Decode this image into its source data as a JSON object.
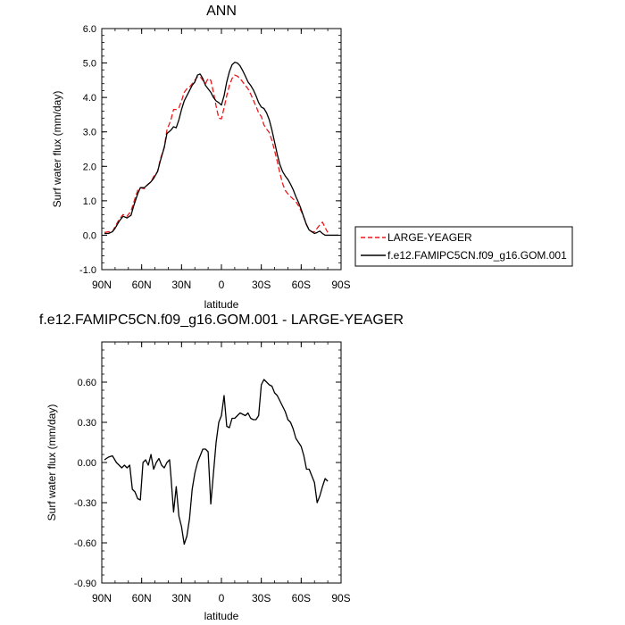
{
  "chart_data": [
    {
      "type": "line",
      "title": "ANN",
      "xlabel": "latitude",
      "ylabel": "Surf water flux (mm/day)",
      "xlim": [
        -90,
        90
      ],
      "ylim": [
        -1.0,
        6.0
      ],
      "x_ticks": [
        -90,
        -60,
        -30,
        0,
        30,
        60,
        90
      ],
      "x_tick_labels": [
        "90N",
        "60N",
        "30N",
        "0",
        "30S",
        "60S",
        "90S"
      ],
      "y_ticks": [
        -1,
        0,
        1,
        2,
        3,
        4,
        5,
        6
      ],
      "y_tick_labels": [
        "-1.0",
        "0.0",
        "1.0",
        "2.0",
        "3.0",
        "4.0",
        "5.0",
        "6.0"
      ],
      "grid": false,
      "legend_placement": "right",
      "series": [
        {
          "name": "LARGE-YEAGER",
          "color": "#e8191b",
          "dash": "dashed",
          "x": [
            -88,
            -85,
            -82,
            -80,
            -77,
            -74,
            -71,
            -68,
            -66,
            -63,
            -61,
            -58,
            -56,
            -53,
            -51,
            -48,
            -46,
            -43,
            -41,
            -38,
            -36,
            -34,
            -32,
            -30,
            -28,
            -26,
            -24,
            -22,
            -20,
            -18,
            -16,
            -14,
            -12,
            -10,
            -8,
            -6,
            -4,
            -2,
            0,
            2,
            4,
            6,
            8,
            10,
            12,
            14,
            16,
            18,
            20,
            22,
            24,
            26,
            28,
            30,
            32,
            34,
            36,
            38,
            40,
            42,
            44,
            46,
            48,
            50,
            52,
            54,
            56,
            58,
            60,
            62,
            64,
            66,
            68,
            70,
            72,
            74,
            76,
            78,
            80
          ],
          "y": [
            0.08,
            0.1,
            0.1,
            0.25,
            0.45,
            0.6,
            0.55,
            0.7,
            0.95,
            1.3,
            1.38,
            1.35,
            1.45,
            1.55,
            1.7,
            1.85,
            2.2,
            2.55,
            3.05,
            3.35,
            3.65,
            3.65,
            3.7,
            3.9,
            4.15,
            4.25,
            4.3,
            4.4,
            4.5,
            4.6,
            4.6,
            4.5,
            4.4,
            4.55,
            4.5,
            4.15,
            3.75,
            3.4,
            3.38,
            3.7,
            4.05,
            4.35,
            4.55,
            4.65,
            4.62,
            4.55,
            4.45,
            4.35,
            4.25,
            4.1,
            3.92,
            3.75,
            3.55,
            3.45,
            3.2,
            3.08,
            2.98,
            2.75,
            2.45,
            2.15,
            1.8,
            1.5,
            1.3,
            1.2,
            1.12,
            1.05,
            0.98,
            0.85,
            0.7,
            0.52,
            0.32,
            0.15,
            0.1,
            0.1,
            0.2,
            0.3,
            0.38,
            0.22,
            0.08
          ]
        },
        {
          "name": "f.e12.FAMIPC5CN.f09_g16.GOM.001",
          "color": "#000000",
          "dash": "solid",
          "x": [
            -88,
            -85,
            -82,
            -80,
            -77,
            -74,
            -71,
            -68,
            -66,
            -63,
            -61,
            -58,
            -56,
            -53,
            -51,
            -48,
            -46,
            -43,
            -41,
            -38,
            -36,
            -34,
            -32,
            -30,
            -28,
            -26,
            -24,
            -22,
            -20,
            -18,
            -16,
            -14,
            -12,
            -10,
            -8,
            -6,
            -4,
            -2,
            0,
            2,
            4,
            6,
            8,
            10,
            12,
            14,
            16,
            18,
            20,
            22,
            24,
            26,
            28,
            30,
            32,
            34,
            36,
            38,
            40,
            42,
            44,
            46,
            48,
            50,
            52,
            54,
            56,
            58,
            60,
            62,
            64,
            66,
            68,
            70,
            72,
            74,
            76,
            78,
            80,
            82,
            85,
            88
          ],
          "y": [
            0.05,
            0.05,
            0.1,
            0.2,
            0.4,
            0.55,
            0.5,
            0.58,
            0.85,
            1.2,
            1.38,
            1.38,
            1.45,
            1.55,
            1.65,
            1.85,
            2.15,
            2.55,
            2.95,
            3.05,
            3.15,
            3.12,
            3.35,
            3.65,
            3.9,
            4.05,
            4.2,
            4.35,
            4.45,
            4.65,
            4.68,
            4.55,
            4.35,
            4.25,
            4.15,
            4.0,
            3.9,
            3.85,
            3.78,
            4.05,
            4.45,
            4.75,
            4.95,
            5.02,
            5.0,
            4.92,
            4.78,
            4.62,
            4.45,
            4.35,
            4.22,
            4.05,
            3.85,
            3.72,
            3.68,
            3.55,
            3.35,
            3.05,
            2.7,
            2.35,
            2.05,
            1.85,
            1.72,
            1.62,
            1.48,
            1.32,
            1.12,
            0.95,
            0.75,
            0.52,
            0.3,
            0.15,
            0.1,
            0.05,
            0.08,
            0.12,
            0.05,
            0.0,
            0.0,
            0.0,
            0.0,
            0.0
          ]
        }
      ]
    },
    {
      "type": "line",
      "title": "f.e12.FAMIPC5CN.f09_g16.GOM.001 - LARGE-YEAGER",
      "xlabel": "latitude",
      "ylabel": "Surf water flux (mm/day)",
      "xlim": [
        -90,
        90
      ],
      "ylim": [
        -0.9,
        0.9
      ],
      "x_ticks": [
        -90,
        -60,
        -30,
        0,
        30,
        60,
        90
      ],
      "x_tick_labels": [
        "90N",
        "60N",
        "30N",
        "0",
        "30S",
        "60S",
        "90S"
      ],
      "y_ticks": [
        -0.9,
        -0.6,
        -0.3,
        0.0,
        0.3,
        0.6
      ],
      "y_tick_labels": [
        "-0.90",
        "-0.60",
        "-0.30",
        "0.00",
        "0.30",
        "0.60"
      ],
      "grid": false,
      "series": [
        {
          "color": "#000000",
          "x": [
            -88,
            -85,
            -82,
            -79,
            -77,
            -75,
            -73,
            -71,
            -69,
            -67,
            -65,
            -63,
            -61,
            -59,
            -57,
            -55,
            -53,
            -51,
            -49,
            -47,
            -45,
            -43,
            -41,
            -39,
            -38,
            -36,
            -34,
            -32,
            -30,
            -28,
            -26,
            -24,
            -22,
            -20,
            -18,
            -16,
            -14,
            -12,
            -10,
            -8,
            -6,
            -4,
            -2,
            0,
            2,
            4,
            6,
            8,
            10,
            12,
            14,
            16,
            18,
            20,
            22,
            24,
            26,
            28,
            30,
            32,
            34,
            36,
            38,
            40,
            42,
            44,
            46,
            48,
            50,
            52,
            54,
            56,
            58,
            60,
            62,
            64,
            66,
            68,
            70,
            72,
            74,
            76,
            78,
            80
          ],
          "y": [
            0.02,
            0.04,
            0.05,
            0.0,
            -0.02,
            -0.04,
            -0.02,
            -0.04,
            -0.02,
            -0.2,
            -0.22,
            -0.27,
            -0.28,
            0.0,
            0.02,
            -0.02,
            0.06,
            -0.05,
            0.0,
            0.03,
            -0.02,
            -0.04,
            0.0,
            0.02,
            -0.1,
            -0.37,
            -0.18,
            -0.4,
            -0.48,
            -0.61,
            -0.55,
            -0.42,
            -0.2,
            -0.08,
            0.0,
            0.05,
            0.1,
            0.1,
            0.08,
            -0.31,
            -0.08,
            0.15,
            0.3,
            0.35,
            0.5,
            0.27,
            0.26,
            0.33,
            0.33,
            0.35,
            0.37,
            0.36,
            0.35,
            0.37,
            0.33,
            0.32,
            0.32,
            0.35,
            0.58,
            0.62,
            0.6,
            0.58,
            0.57,
            0.52,
            0.5,
            0.46,
            0.42,
            0.38,
            0.32,
            0.3,
            0.25,
            0.18,
            0.15,
            0.12,
            0.05,
            -0.05,
            -0.05,
            -0.1,
            -0.15,
            -0.3,
            -0.25,
            -0.18,
            -0.12,
            -0.14
          ]
        }
      ]
    }
  ]
}
